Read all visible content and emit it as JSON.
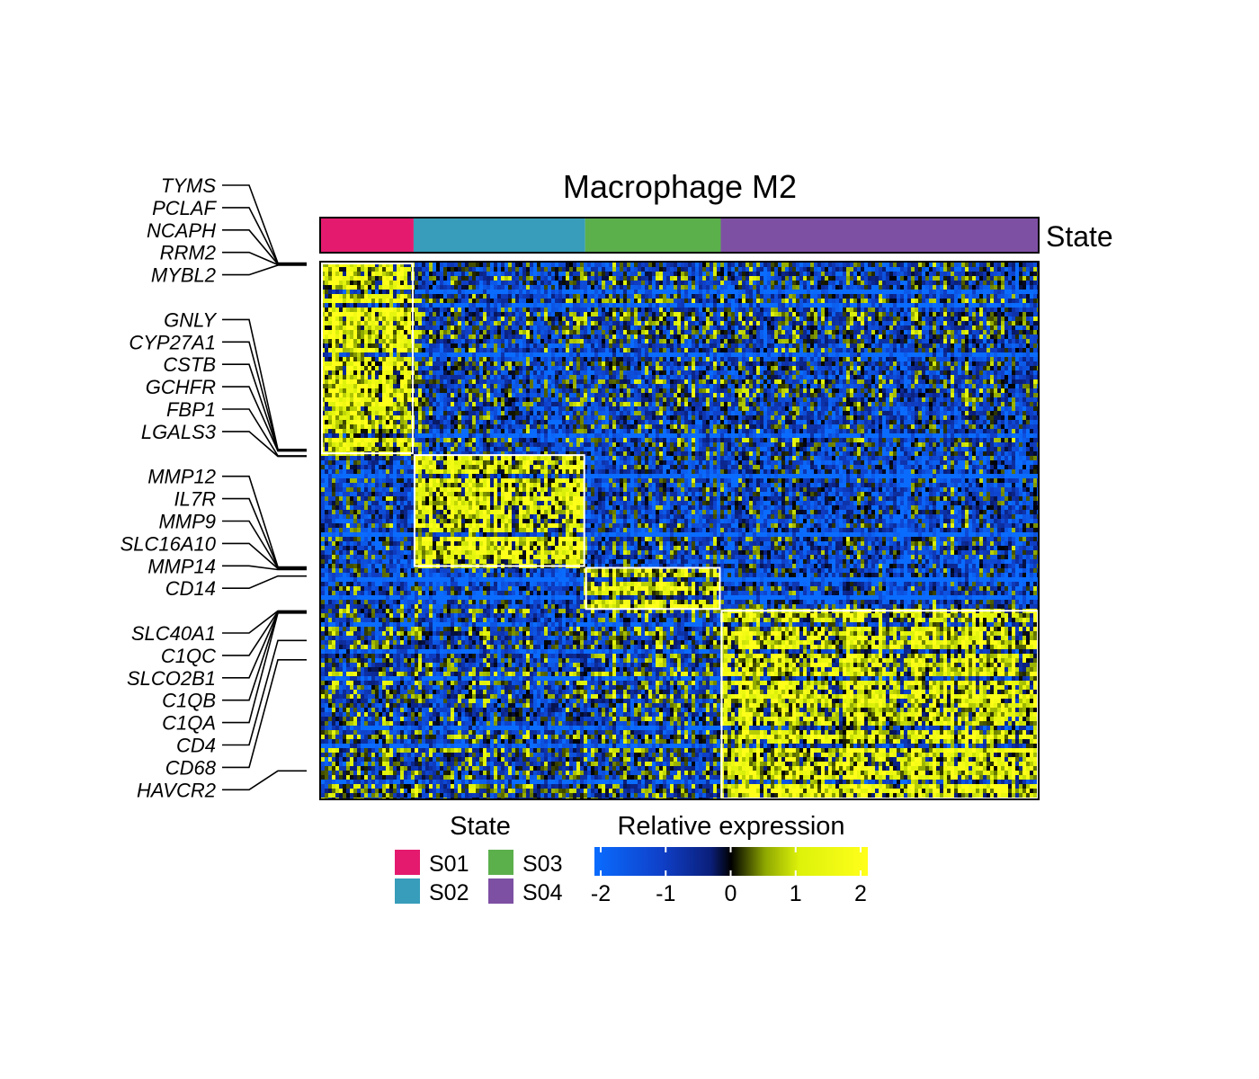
{
  "chart_data": {
    "type": "heatmap",
    "title": "Macrophage M2",
    "annotation_label": "State",
    "states": [
      {
        "name": "S01",
        "color": "#E41A6E",
        "cell_fraction": 0.129
      },
      {
        "name": "S02",
        "color": "#379DBA",
        "cell_fraction": 0.239
      },
      {
        "name": "S03",
        "color": "#5BB04C",
        "cell_fraction": 0.189
      },
      {
        "name": "S04",
        "color": "#7E50A4",
        "cell_fraction": 0.443
      }
    ],
    "gene_blocks": [
      {
        "state": "S01",
        "row_fraction": 0.357
      },
      {
        "state": "S02",
        "row_fraction": 0.21
      },
      {
        "state": "S03",
        "row_fraction": 0.08
      },
      {
        "state": "S04",
        "row_fraction": 0.353
      }
    ],
    "labeled_genes": [
      {
        "gene": "TYMS",
        "row_fraction": 0.001
      },
      {
        "gene": "PCLAF",
        "row_fraction": 0.002
      },
      {
        "gene": "NCAPH",
        "row_fraction": 0.003
      },
      {
        "gene": "RRM2",
        "row_fraction": 0.004
      },
      {
        "gene": "MYBL2",
        "row_fraction": 0.005
      },
      {
        "gene": "GNLY",
        "row_fraction": 0.348
      },
      {
        "gene": "CYP27A1",
        "row_fraction": 0.349
      },
      {
        "gene": "CSTB",
        "row_fraction": 0.35
      },
      {
        "gene": "GCHFR",
        "row_fraction": 0.351
      },
      {
        "gene": "FBP1",
        "row_fraction": 0.36
      },
      {
        "gene": "LGALS3",
        "row_fraction": 0.361
      },
      {
        "gene": "MMP12",
        "row_fraction": 0.567
      },
      {
        "gene": "IL7R",
        "row_fraction": 0.568
      },
      {
        "gene": "MMP9",
        "row_fraction": 0.569
      },
      {
        "gene": "SLC16A10",
        "row_fraction": 0.57
      },
      {
        "gene": "MMP14",
        "row_fraction": 0.572
      },
      {
        "gene": "CD14",
        "row_fraction": 0.584
      },
      {
        "gene": "SLC40A1",
        "row_fraction": 0.649
      },
      {
        "gene": "C1QC",
        "row_fraction": 0.65
      },
      {
        "gene": "SLCO2B1",
        "row_fraction": 0.651
      },
      {
        "gene": "C1QB",
        "row_fraction": 0.652
      },
      {
        "gene": "C1QA",
        "row_fraction": 0.653
      },
      {
        "gene": "CD4",
        "row_fraction": 0.704
      },
      {
        "gene": "CD68",
        "row_fraction": 0.74
      },
      {
        "gene": "HAVCR2",
        "row_fraction": 0.947
      }
    ],
    "state_legend_title": "State",
    "colorbar": {
      "title": "Relative expression",
      "range": [
        -2,
        2
      ],
      "ticks": [
        "-2",
        "-1",
        "0",
        "1",
        "2"
      ],
      "stops": [
        {
          "value": -2,
          "color": "#0A6CFF"
        },
        {
          "value": -1,
          "color": "#0F3FC7"
        },
        {
          "value": -0.3,
          "color": "#0B1F7A"
        },
        {
          "value": 0,
          "color": "#000000"
        },
        {
          "value": 0.5,
          "color": "#8FA800"
        },
        {
          "value": 1,
          "color": "#DDF20A"
        },
        {
          "value": 2,
          "color": "#FFFF1A"
        }
      ]
    },
    "block_separator_color": "#FFFFFF",
    "grid": false
  }
}
